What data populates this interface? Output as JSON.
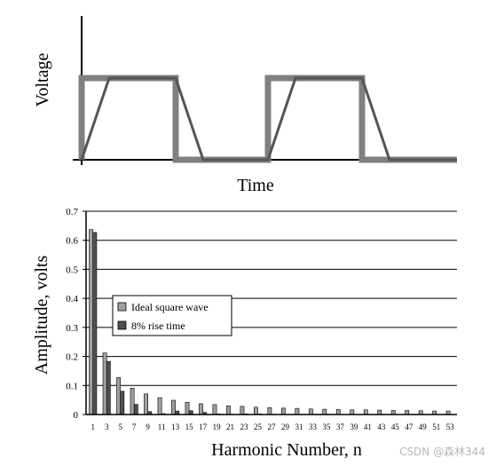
{
  "waveform": {
    "ylabel": "Voltage",
    "xlabel": "Time",
    "series": [
      {
        "name": "Ideal square wave",
        "color": "#808080"
      },
      {
        "name": "8% rise time",
        "color": "#555555"
      }
    ]
  },
  "chart_data": {
    "type": "bar",
    "title": "",
    "xlabel": "Harmonic Number, n",
    "ylabel": "Amplitude, volts",
    "ylim": [
      0,
      0.7
    ],
    "yticks": [
      "0",
      "0.1",
      "0.2",
      "0.3",
      "0.4",
      "0.5",
      "0.6",
      "0.7"
    ],
    "grid": true,
    "legend_position": "center-left",
    "categories": [
      "1",
      "3",
      "5",
      "7",
      "9",
      "11",
      "13",
      "15",
      "17",
      "19",
      "21",
      "23",
      "25",
      "27",
      "29",
      "31",
      "33",
      "35",
      "37",
      "39",
      "41",
      "43",
      "45",
      "47",
      "49",
      "51",
      "53"
    ],
    "series": [
      {
        "name": "Ideal square wave",
        "color": "#a0a0a0",
        "values": [
          0.637,
          0.212,
          0.127,
          0.091,
          0.071,
          0.058,
          0.049,
          0.042,
          0.037,
          0.034,
          0.03,
          0.028,
          0.025,
          0.024,
          0.022,
          0.021,
          0.019,
          0.018,
          0.017,
          0.016,
          0.016,
          0.015,
          0.014,
          0.014,
          0.013,
          0.012,
          0.012
        ]
      },
      {
        "name": "8% rise time",
        "color": "#505050",
        "values": [
          0.627,
          0.183,
          0.08,
          0.035,
          0.01,
          0.003,
          0.012,
          0.013,
          0.007,
          0.002,
          0.001,
          0.002,
          0.002,
          0.001,
          0.0,
          0.0,
          0.001,
          0.001,
          0.0,
          0.0,
          0.0,
          0.0,
          0.0,
          0.0,
          0.0,
          0.0,
          0.0
        ]
      }
    ]
  },
  "watermark": "CSDN @森林344"
}
